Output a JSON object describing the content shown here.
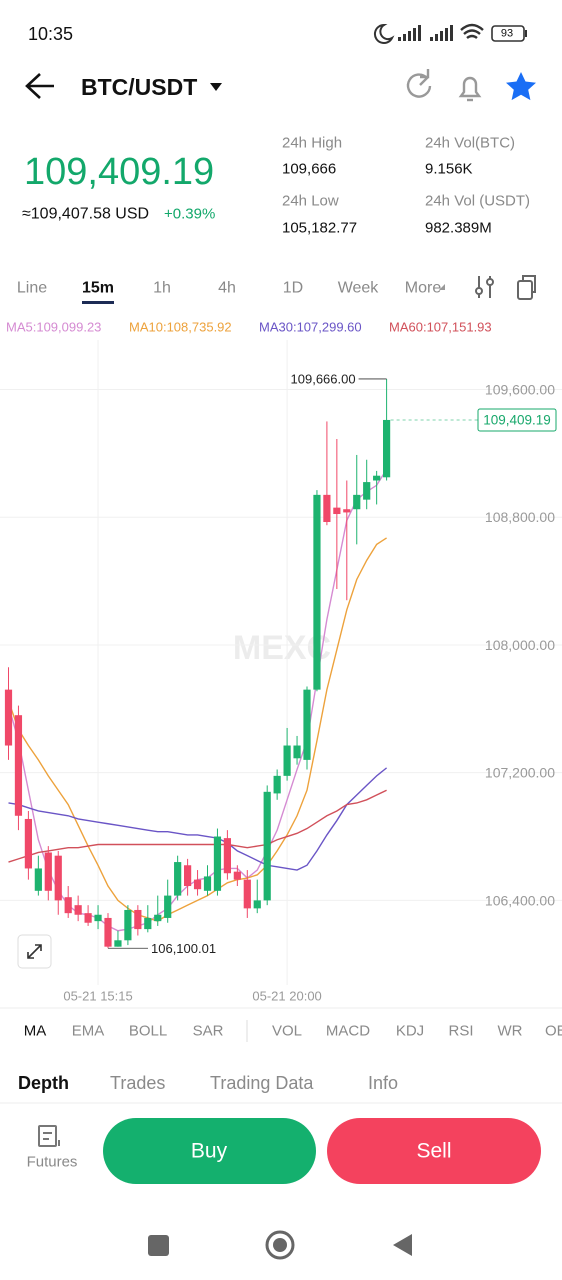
{
  "status_bar": {
    "time": "10:35",
    "battery": "93"
  },
  "header": {
    "pair": "BTC/USDT"
  },
  "ticker": {
    "price": "109,409.19",
    "usd": "≈109,407.58 USD",
    "change": "+0.39%",
    "stats": [
      {
        "label": "24h High",
        "value": "109,666"
      },
      {
        "label": "24h Vol(BTC)",
        "value": "9.156K"
      },
      {
        "label": "24h Low",
        "value": "105,182.77"
      },
      {
        "label": "24h Vol (USDT)",
        "value": "982.389M"
      }
    ]
  },
  "intervals": [
    "Line",
    "15m",
    "1h",
    "4h",
    "1D",
    "Week",
    "More"
  ],
  "chart_data": {
    "type": "candlestick",
    "watermark": "MEXC",
    "categories": [
      null,
      null,
      null,
      null,
      null,
      null,
      null,
      null,
      null,
      "05-21 15:15",
      null,
      null,
      null,
      null,
      null,
      null,
      null,
      null,
      null,
      null,
      null,
      null,
      null,
      null,
      null,
      null,
      null,
      null,
      "05-21 20:00",
      null,
      null,
      null,
      null,
      null,
      null,
      null,
      null,
      null,
      null
    ],
    "open": [
      107720,
      107560,
      106910,
      106460,
      106700,
      106680,
      106420,
      106370,
      106320,
      106270,
      106290,
      106110,
      106150,
      106340,
      106220,
      106270,
      106290,
      106430,
      106620,
      106530,
      106460,
      106460,
      106790,
      106580,
      106530,
      106350,
      106400,
      107070,
      107180,
      107290,
      107280,
      107720,
      108940,
      108860,
      108850,
      108850,
      108910,
      109030,
      109050
    ],
    "high": [
      107860,
      107620,
      106960,
      106680,
      106740,
      106710,
      106490,
      106430,
      106370,
      106370,
      106320,
      106210,
      106370,
      106370,
      106370,
      106430,
      106530,
      106680,
      106660,
      106590,
      106620,
      106850,
      106840,
      106620,
      106590,
      106530,
      107120,
      107220,
      107480,
      107430,
      107740,
      108970,
      109400,
      109290,
      109030,
      109190,
      109160,
      109090,
      109666.0
    ],
    "low": [
      107280,
      106840,
      106530,
      106430,
      106400,
      106310,
      106290,
      106270,
      106240,
      106220,
      106100.01,
      106110,
      106120,
      106180,
      106200,
      106240,
      106260,
      106400,
      106430,
      106430,
      106430,
      106430,
      106530,
      106490,
      106290,
      106320,
      106370,
      107030,
      107150,
      107250,
      107220,
      107710,
      108750,
      108350,
      108280,
      108630,
      108850,
      108880,
      109030
    ],
    "close": [
      107370,
      106930,
      106600,
      106600,
      106460,
      106400,
      106320,
      106310,
      106260,
      106310,
      106110,
      106150,
      106340,
      106220,
      106290,
      106310,
      106430,
      106640,
      106490,
      106470,
      106550,
      106800,
      106570,
      106530,
      106350,
      106400,
      107080,
      107180,
      107370,
      107370,
      107720,
      108940,
      108770,
      108820,
      108830,
      108940,
      109020,
      109060,
      109409.19
    ],
    "up_color": "#1db36f",
    "down_color": "#f04868",
    "series": [
      {
        "name": "MA5:109,099.23",
        "color": "#d58bd2",
        "values": [
          107620,
          107400,
          107090,
          106780,
          106590,
          106460,
          106370,
          106320,
          106310,
          106290,
          106240,
          106210,
          106220,
          106240,
          106260,
          106310,
          106350,
          106430,
          106490,
          106530,
          106540,
          106590,
          106600,
          106600,
          106540,
          106590,
          106710,
          106840,
          107030,
          107220,
          107400,
          107780,
          108160,
          108470,
          108780,
          108910,
          108960,
          109000,
          109100
        ]
      },
      {
        "name": "MA10:108,735.92",
        "color": "#eda23c",
        "values": [
          107650,
          107470,
          107370,
          107280,
          107180,
          107090,
          107000,
          106870,
          106740,
          106620,
          106490,
          106400,
          106350,
          106310,
          106290,
          106270,
          106310,
          106340,
          106370,
          106400,
          106430,
          106470,
          106510,
          106530,
          106540,
          106560,
          106620,
          106710,
          106810,
          106930,
          107090,
          107400,
          107720,
          107970,
          108220,
          108410,
          108530,
          108630,
          108670
        ]
      },
      {
        "name": "MA30:107,299.60",
        "color": "#6a55c6",
        "values": [
          107010,
          107000,
          106980,
          106960,
          106950,
          106940,
          106930,
          106910,
          106900,
          106890,
          106880,
          106870,
          106860,
          106850,
          106840,
          106830,
          106830,
          106820,
          106810,
          106810,
          106800,
          106790,
          106760,
          106710,
          106680,
          106650,
          106620,
          106610,
          106600,
          106590,
          106620,
          106710,
          106810,
          106900,
          107000,
          107060,
          107120,
          107180,
          107230
        ]
      },
      {
        "name": "MA60:107,151.93",
        "color": "#d1505a",
        "values": [
          106640,
          106660,
          106680,
          106700,
          106710,
          106720,
          106730,
          106730,
          106740,
          106750,
          106750,
          106750,
          106750,
          106750,
          106750,
          106750,
          106750,
          106750,
          106750,
          106750,
          106750,
          106750,
          106750,
          106740,
          106730,
          106740,
          106750,
          106780,
          106800,
          106820,
          106850,
          106890,
          106930,
          106960,
          107000,
          107010,
          107030,
          107060,
          107090
        ]
      }
    ],
    "ylim": [
      105870,
      109910
    ],
    "yticks": [
      {
        "value": 106400,
        "label": "106,400.00"
      },
      {
        "value": 107200,
        "label": "107,200.00"
      },
      {
        "value": 108000,
        "label": "108,000.00"
      },
      {
        "value": 108800,
        "label": "108,800.00"
      },
      {
        "value": 109600,
        "label": "109,600.00"
      }
    ],
    "grid": true,
    "high_label": "109,666.00",
    "low_label": "106,100.01",
    "last_label": "109,409.19"
  },
  "indicators": [
    "MA",
    "EMA",
    "BOLL",
    "SAR",
    "VOL",
    "MACD",
    "KDJ",
    "RSI",
    "WR",
    "OBV"
  ],
  "tabs": [
    "Depth",
    "Trades",
    "Trading Data",
    "Info"
  ],
  "actions": {
    "futures": "Futures",
    "buy": "Buy",
    "sell": "Sell"
  }
}
